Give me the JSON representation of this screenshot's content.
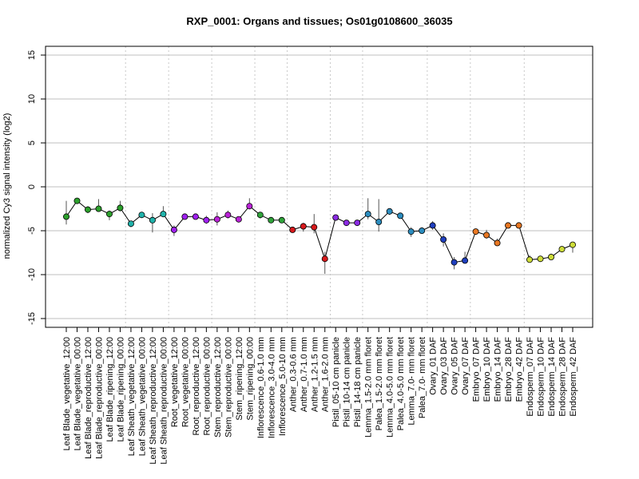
{
  "chart_data": {
    "type": "line",
    "title": "RXP_0001: Organs and tissues; Os01g0108600_36035",
    "xlabel": "",
    "ylabel": "normalized Cy3 signal intensity (log2)",
    "ylim": [
      -16,
      16
    ],
    "yticks": [
      -15,
      -10,
      -5,
      0,
      5,
      10,
      15
    ],
    "grid": true,
    "categories": [
      "Leaf Blade_vegetative_12:00",
      "Leaf Blade_vegetative_00:00",
      "Leaf Blade_reproductive_12:00",
      "Leaf Blade_reproductive_00:00",
      "Leaf Blade_ripening_12:00",
      "Leaf Blade_ripening_00:00",
      "Leaf Sheath_vegetative_12:00",
      "Leaf Sheath_vegetative_00:00",
      "Leaf Sheath_reproductive_12:00",
      "Leaf Sheath_reproductive_00:00",
      "Root_vegetative_12:00",
      "Root_vegetative_00:00",
      "Root_reproductive_12:00",
      "Root_reproductive_00:00",
      "Stem_reproductive_12:00",
      "Stem_reproductive_00:00",
      "Stem_ripening_12:00",
      "Stem_ripening_00:00",
      "Inflorescence_0.6-1.0 mm",
      "Inflorescence_3.0-4.0 mm",
      "Inflorescence_5.0-10 mm",
      "Anther_0.3-0.6 mm",
      "Anther_0.7-1.0 mm",
      "Anther_1.2-1.5 mm",
      "Anther_1.6-2.0 mm",
      "Pistil_05-10 cm panicle",
      "Pistil_10-14 cm panicle",
      "Pistil_14-18 cm panicle",
      "Lemma_1.5-2.0 mm floret",
      "Palea_1.5-2.0 mm floret",
      "Lemma_4.0-5.0 mm floret",
      "Palea_4.0-5.0 mm floret",
      "Lemma_7.0- mm floret",
      "Palea_7.0- mm floret",
      "Ovary_01 DAF",
      "Ovary_03 DAF",
      "Ovary_05 DAF",
      "Ovary_07 DAF",
      "Embryo_07 DAF",
      "Embryo_10 DAF",
      "Embryo_14 DAF",
      "Embryo_28 DAF",
      "Embryo_42 DAF",
      "Endosperm_07 DAF",
      "Endosperm_10 DAF",
      "Endosperm_14 DAF",
      "Endosperm_28 DAF",
      "Endosperm_42 DAF"
    ],
    "values": [
      -3.4,
      -1.6,
      -2.6,
      -2.5,
      -3.1,
      -2.4,
      -4.2,
      -3.2,
      -3.8,
      -3.1,
      -4.9,
      -3.4,
      -3.4,
      -3.8,
      -3.7,
      -3.2,
      -3.7,
      -2.2,
      -3.2,
      -3.8,
      -3.8,
      -4.9,
      -4.5,
      -4.6,
      -8.2,
      -3.5,
      -4.1,
      -4.1,
      -3.1,
      -4.0,
      -2.8,
      -3.3,
      -5.1,
      -5.0,
      -4.4,
      -6.0,
      -8.6,
      -8.4,
      -5.1,
      -5.5,
      -6.4,
      -4.4,
      -4.4,
      -8.3,
      -8.2,
      -8.0,
      -7.1,
      -6.6
    ],
    "err_low": [
      -4.3,
      -1.9,
      -3.0,
      -2.8,
      -3.8,
      -2.8,
      -4.6,
      -3.3,
      -5.2,
      -3.4,
      -5.6,
      -3.6,
      -3.6,
      -4.2,
      -4.4,
      -3.6,
      -3.8,
      -2.4,
      -3.6,
      -4.1,
      -4.1,
      -5.1,
      -5.1,
      -5.3,
      -9.9,
      -3.7,
      -4.3,
      -4.3,
      -3.7,
      -5.1,
      -3.2,
      -3.5,
      -5.7,
      -5.3,
      -4.9,
      -6.8,
      -9.4,
      -8.7,
      -5.3,
      -5.9,
      -6.7,
      -4.6,
      -4.6,
      -8.6,
      -8.4,
      -8.3,
      -7.4,
      -7.5
    ],
    "err_high": [
      -1.6,
      -1.4,
      -2.2,
      -1.4,
      -2.7,
      -1.6,
      -3.9,
      -3.0,
      -3.0,
      -2.2,
      -4.4,
      -3.2,
      -3.2,
      -3.3,
      -2.9,
      -2.7,
      -3.5,
      -1.3,
      -3.0,
      -3.5,
      -3.6,
      -4.7,
      -4.1,
      -3.1,
      -7.4,
      -3.3,
      -3.9,
      -3.9,
      -1.3,
      -1.4,
      -2.5,
      -3.0,
      -4.6,
      -4.6,
      -3.9,
      -5.3,
      -8.0,
      -7.4,
      -4.9,
      -4.9,
      -5.9,
      -4.2,
      -4.1,
      -7.8,
      -8.0,
      -7.6,
      -6.8,
      -6.3
    ],
    "group_separators_after_index": [
      5,
      9,
      13,
      17,
      20,
      24,
      27,
      33,
      37,
      42
    ],
    "point_colors": [
      "#2ca02c",
      "#2ca02c",
      "#2ca02c",
      "#2ca02c",
      "#2ca02c",
      "#2ca02c",
      "#20b2aa",
      "#20b2aa",
      "#20b2aa",
      "#20b2aa",
      "#a020f0",
      "#a020f0",
      "#a020f0",
      "#a020f0",
      "#ba22d6",
      "#ba22d6",
      "#ba22d6",
      "#ba22d6",
      "#2fa33a",
      "#2fa33a",
      "#2fa33a",
      "#d7191c",
      "#d7191c",
      "#d7191c",
      "#d7191c",
      "#8a2be2",
      "#8a2be2",
      "#8a2be2",
      "#2b8cbe",
      "#2b8cbe",
      "#2b8cbe",
      "#2b8cbe",
      "#2b8cbe",
      "#2b8cbe",
      "#1f3fbf",
      "#1f3fbf",
      "#1f3fbf",
      "#1f3fbf",
      "#e87722",
      "#e87722",
      "#e87722",
      "#e87722",
      "#e87722",
      "#cddc39",
      "#cddc39",
      "#cddc39",
      "#cddc39",
      "#cddc39"
    ],
    "line_color": "#000000",
    "grid_color": "#bfbfbf"
  }
}
